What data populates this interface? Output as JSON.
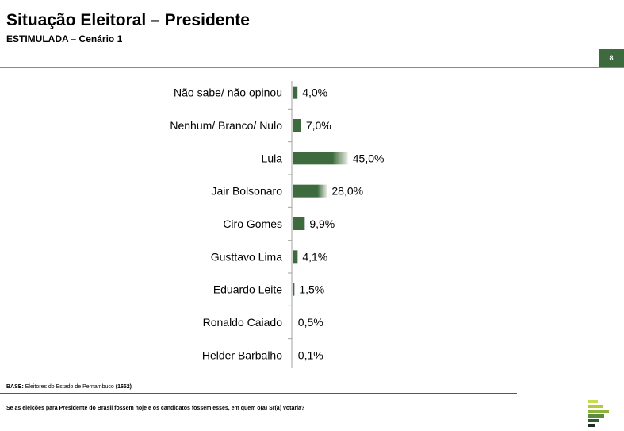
{
  "header": {
    "title": "Situação Eleitoral – Presidente",
    "subtitle": "ESTIMULADA – Cenário 1",
    "page_number": "8"
  },
  "footer": {
    "base_label": "BASE:",
    "base_text": " Eleitores do Estado de Pernambuco ",
    "base_count": "(1652)",
    "question": "Se as eleições para Presidente do Brasil fossem hoje e os candidatos fossem esses, em quem o(a) Sr(a) votaria?"
  },
  "colors": {
    "bar": "#3d6b3d",
    "bar_light": "#e9efe3",
    "accent": "#3d6b3d"
  },
  "logo_icon": "stacked-bars-logo-icon",
  "chart_data": {
    "type": "bar",
    "orientation": "horizontal",
    "categories": [
      "Não sabe/ não opinou",
      "Nenhum/ Branco/ Nulo",
      "Lula",
      "Jair Bolsonaro",
      "Ciro Gomes",
      "Gusttavo Lima",
      "Eduardo Leite",
      "Ronaldo Caiado",
      "Helder Barbalho"
    ],
    "values": [
      4.0,
      7.0,
      45.0,
      28.0,
      9.9,
      4.1,
      1.5,
      0.5,
      0.1
    ],
    "value_labels": [
      "4,0%",
      "7,0%",
      "45,0%",
      "28,0%",
      "9,9%",
      "4,1%",
      "1,5%",
      "0,5%",
      "0,1%"
    ],
    "xlim": [
      0,
      100
    ],
    "grid": false,
    "legend": "none"
  }
}
